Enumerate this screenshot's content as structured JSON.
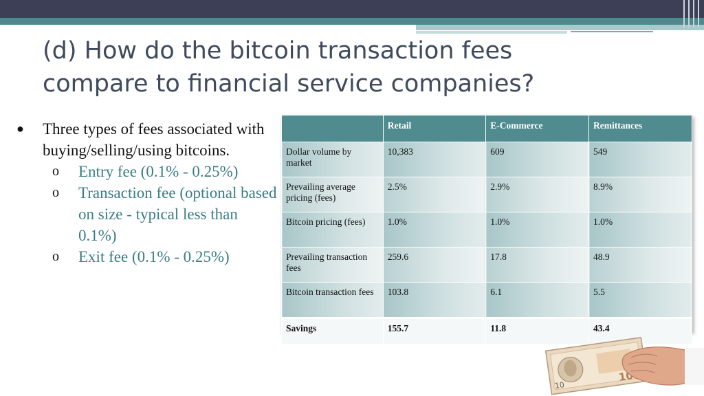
{
  "title": {
    "line1": "(d) How do the bitcoin transaction fees",
    "line2": "compare to financial service companies?"
  },
  "bullets": {
    "main": "Three types of fees associated with buying/selling/using bitcoins.",
    "subs": [
      "Entry fee (0.1% - 0.25%)",
      "Transaction fee (optional based on size - typical less than 0.1%)",
      "Exit fee (0.1% - 0.25%)"
    ]
  },
  "table": {
    "headers": [
      "",
      "Retail",
      "E-Commerce",
      "Remittances"
    ],
    "rows": [
      [
        "Dollar volume by market",
        "10,383",
        "609",
        "549"
      ],
      [
        "Prevailing average pricing (fees)",
        "2.5%",
        "2.9%",
        "8.9%"
      ],
      [
        "Bitcoin pricing (fees)",
        "1.0%",
        "1.0%",
        "1.0%"
      ],
      [
        "Prevailing transaction fees",
        "259.6",
        "17.8",
        "48.9"
      ],
      [
        "Bitcoin transaction fees",
        "103.8",
        "6.1",
        "5.5"
      ],
      [
        "Savings",
        "155.7",
        "11.8",
        "43.4"
      ]
    ]
  },
  "image": {
    "banknote_text": "10"
  },
  "colors": {
    "topbar": "#3d3f56",
    "accent": "#4f8b8f",
    "subtext": "#3a7d86",
    "title": "#3f4a5c"
  }
}
